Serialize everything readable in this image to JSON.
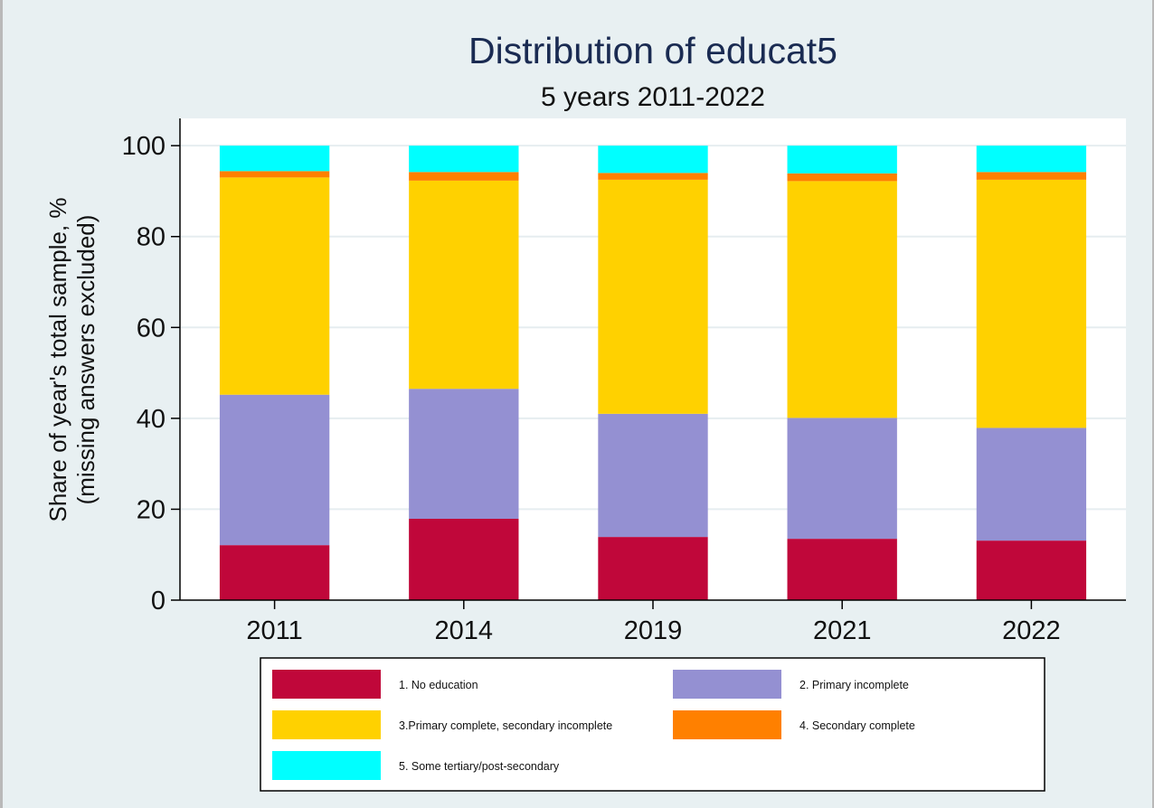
{
  "chart_data": {
    "type": "bar",
    "stacked": true,
    "title": "Distribution of educat5",
    "subtitle": "5 years 2011-2022",
    "ylabel_line1": "Share of year's total sample, %",
    "ylabel_line2": "(missing answers excluded)",
    "categories": [
      "2011",
      "2014",
      "2019",
      "2021",
      "2022"
    ],
    "yticks": [
      "0",
      "20",
      "40",
      "60",
      "80",
      "100"
    ],
    "ylim": [
      0,
      106
    ],
    "grid": true,
    "legend_position": "bottom",
    "series": [
      {
        "name": "1. No education",
        "color": "#c0073a",
        "values": [
          12.1,
          17.9,
          13.9,
          13.5,
          13.1
        ]
      },
      {
        "name": "2. Primary incomplete",
        "color": "#9490d2",
        "values": [
          33.1,
          28.6,
          27.1,
          26.6,
          24.8
        ]
      },
      {
        "name": "3.Primary complete, secondary incomplete",
        "color": "#ffd100",
        "values": [
          47.8,
          45.8,
          51.5,
          52.1,
          54.6
        ]
      },
      {
        "name": "4. Secondary complete",
        "color": "#ff8000",
        "values": [
          1.4,
          1.9,
          1.5,
          1.7,
          1.7
        ]
      },
      {
        "name": "5. Some tertiary/post-secondary",
        "color": "#00ffff",
        "values": [
          5.6,
          5.8,
          6.0,
          6.1,
          5.8
        ]
      }
    ]
  }
}
